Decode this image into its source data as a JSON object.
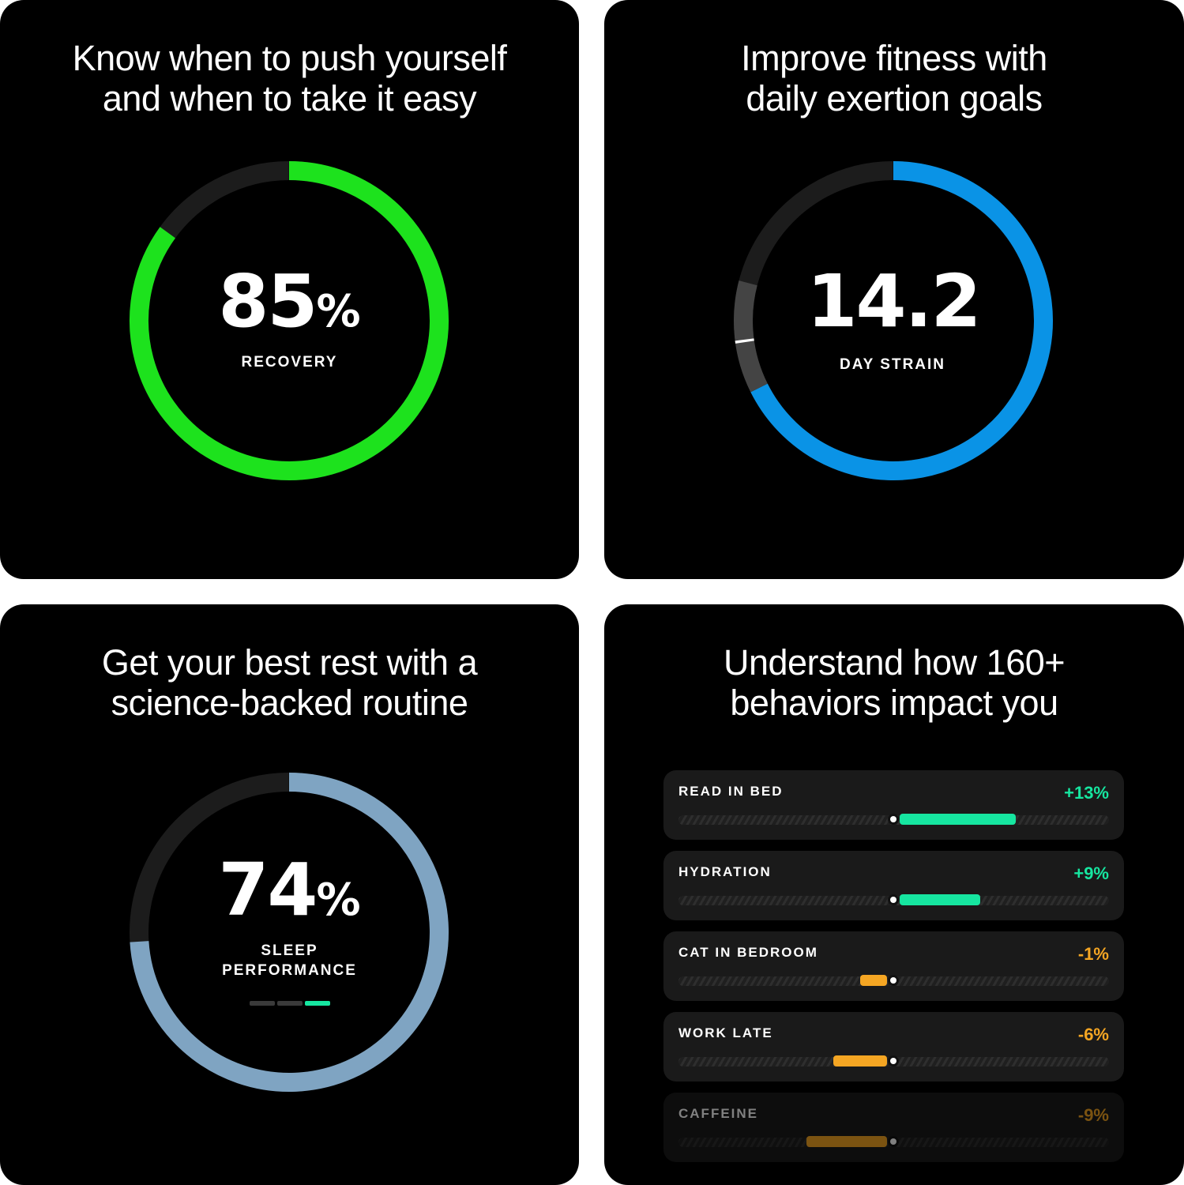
{
  "cards": {
    "recovery": {
      "title_line1": "Know when to push yourself",
      "title_line2": "and when to take it easy",
      "value": "85",
      "unit": "%",
      "label": "RECOVERY",
      "fraction": 0.85,
      "color": "#1de21d"
    },
    "strain": {
      "title_line1": "Improve fitness with",
      "title_line2": "daily exertion goals",
      "value": "14.2",
      "label": "DAY STRAIN",
      "max": 21,
      "target_range": [
        14.2,
        16.6
      ],
      "target_marker": 15.3,
      "color": "#0a93e6"
    },
    "sleep": {
      "title_line1": "Get your best rest with a",
      "title_line2": "science-backed routine",
      "value": "74",
      "unit": "%",
      "label_line1": "SLEEP",
      "label_line2": "PERFORMANCE",
      "fraction": 0.74,
      "color": "#7fa4c2",
      "indicator_active_index": 2
    },
    "behaviors": {
      "title_line1": "Understand how 160+",
      "title_line2": "behaviors impact you",
      "items": [
        {
          "name": "READ IN BED",
          "value": "+13%",
          "impact": 13
        },
        {
          "name": "HYDRATION",
          "value": "+9%",
          "impact": 9
        },
        {
          "name": "CAT IN BEDROOM",
          "value": "-1%",
          "impact": -1
        },
        {
          "name": "WORK LATE",
          "value": "-6%",
          "impact": -6
        },
        {
          "name": "CAFFEINE",
          "value": "-9%",
          "impact": -9
        }
      ],
      "positive_color": "#16e6a0",
      "negative_color": "#f5a623"
    }
  }
}
